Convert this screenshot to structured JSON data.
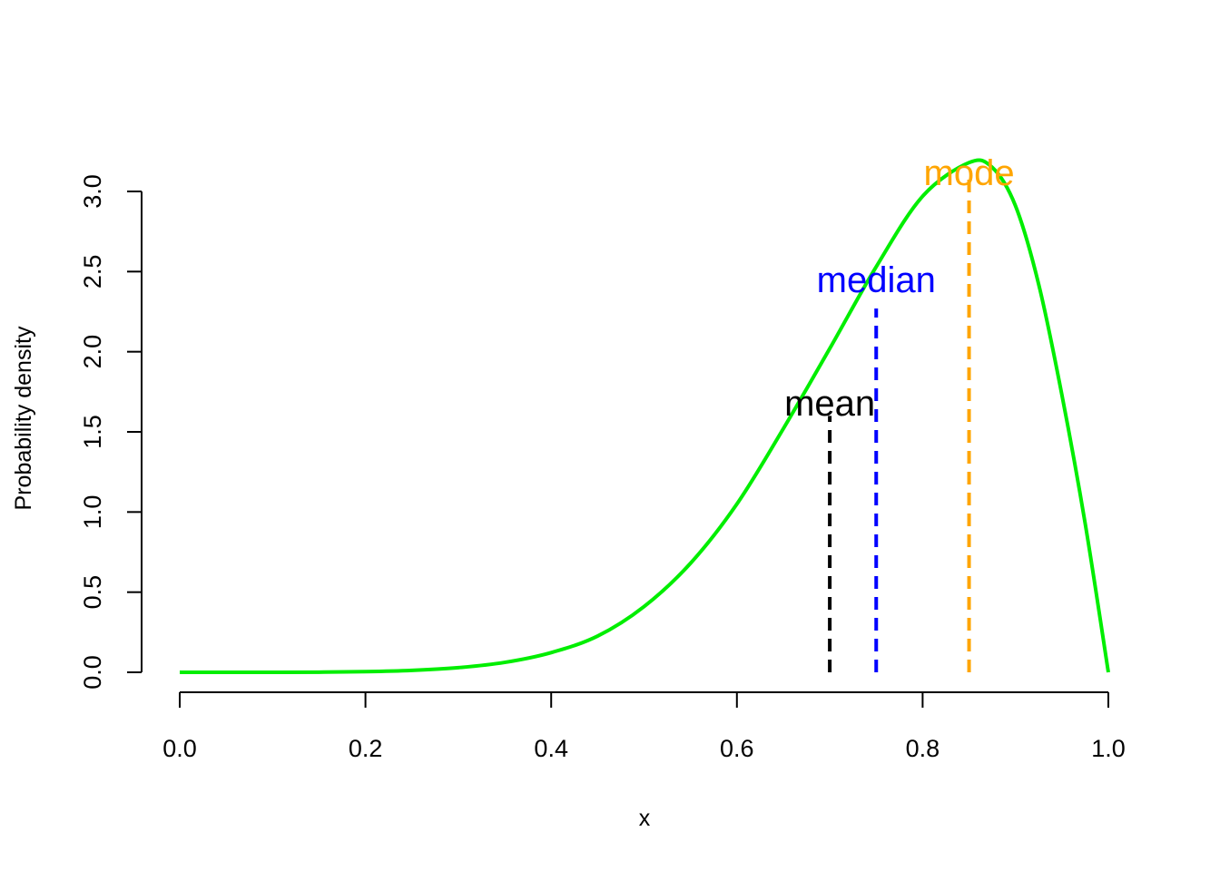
{
  "chart_data": {
    "type": "line",
    "title": "",
    "xlabel": "x",
    "ylabel": "Probability density",
    "xlim": [
      0,
      1
    ],
    "ylim": [
      0,
      3
    ],
    "x_ticks": [
      "0.0",
      "0.2",
      "0.4",
      "0.6",
      "0.8",
      "1.0"
    ],
    "y_ticks": [
      "0.0",
      "0.5",
      "1.0",
      "1.5",
      "2.0",
      "2.5",
      "3.0"
    ],
    "grid": false,
    "series": [
      {
        "color": "#00ee00",
        "x": [
          0.0,
          0.05,
          0.1,
          0.15,
          0.2,
          0.25,
          0.3,
          0.35,
          0.4,
          0.45,
          0.5,
          0.55,
          0.6,
          0.65,
          0.7,
          0.75,
          0.8,
          0.85,
          0.875,
          0.9,
          0.925,
          0.95,
          0.975,
          1.0
        ],
        "y": [
          0.0,
          0.0,
          0.0,
          0.001,
          0.004,
          0.012,
          0.029,
          0.062,
          0.123,
          0.226,
          0.41,
          0.68,
          1.05,
          1.52,
          2.02,
          2.53,
          2.97,
          3.18,
          3.15,
          2.91,
          2.42,
          1.73,
          0.93,
          0.0
        ]
      }
    ],
    "annotations": [
      {
        "label": "mean",
        "x": 0.7,
        "y_top": 1.6,
        "label_y": 1.68,
        "color": "#000000"
      },
      {
        "label": "median",
        "x": 0.75,
        "y_top": 2.27,
        "label_y": 2.45,
        "color": "#0000ff"
      },
      {
        "label": "mode",
        "x": 0.85,
        "y_top": 3.1,
        "label_y": 3.12,
        "color": "#ffa500"
      }
    ]
  }
}
